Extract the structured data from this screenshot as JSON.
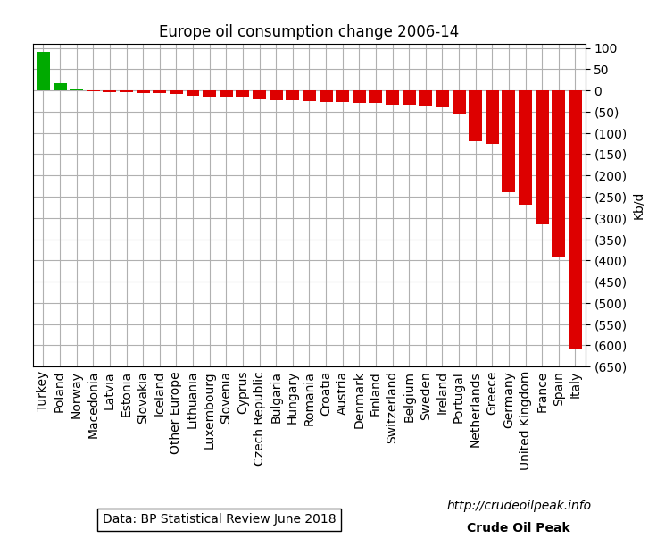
{
  "chart_data": {
    "type": "bar",
    "title": "Europe oil consumption change 2006-14",
    "y_label": "Kb/d",
    "categories": [
      "Turkey",
      "Poland",
      "Norway",
      "Macedonia",
      "Latvia",
      "Estonia",
      "Slovakia",
      "Iceland",
      "Other Europe",
      "Lithuania",
      "Luxembourg",
      "Slovenia",
      "Cyprus",
      "Czech Republic",
      "Bulgaria",
      "Hungary",
      "Romania",
      "Croatia",
      "Austria",
      "Denmark",
      "Finland",
      "Switzerland",
      "Belgium",
      "Sweden",
      "Ireland",
      "Portugal",
      "Netherlands",
      "Greece",
      "Germany",
      "United Kingdom",
      "France",
      "Spain",
      "Italy"
    ],
    "values": [
      90,
      18,
      2,
      -2,
      -3,
      -3,
      -5,
      -5,
      -7,
      -13,
      -14,
      -16,
      -17,
      -20,
      -22,
      -23,
      -25,
      -27,
      -27,
      -28,
      -30,
      -33,
      -35,
      -37,
      -40,
      -55,
      -120,
      -125,
      -240,
      -270,
      -315,
      -390,
      -610
    ],
    "colors": [
      "#00aa00",
      "#00aa00",
      "#00aa00",
      "#dd0000",
      "#dd0000",
      "#dd0000",
      "#dd0000",
      "#dd0000",
      "#dd0000",
      "#dd0000",
      "#dd0000",
      "#dd0000",
      "#dd0000",
      "#dd0000",
      "#dd0000",
      "#dd0000",
      "#dd0000",
      "#dd0000",
      "#dd0000",
      "#dd0000",
      "#dd0000",
      "#dd0000",
      "#dd0000",
      "#dd0000",
      "#dd0000",
      "#dd0000",
      "#dd0000",
      "#dd0000",
      "#dd0000",
      "#dd0000",
      "#dd0000",
      "#dd0000",
      "#dd0000"
    ],
    "ylim": [
      -650,
      110
    ],
    "yticks": [
      {
        "value": -650,
        "label": "(650)"
      },
      {
        "value": -600,
        "label": "(600)"
      },
      {
        "value": -550,
        "label": "(550)"
      },
      {
        "value": -500,
        "label": "(500)"
      },
      {
        "value": -450,
        "label": "(450)"
      },
      {
        "value": -400,
        "label": "(400)"
      },
      {
        "value": -350,
        "label": "(350)"
      },
      {
        "value": -300,
        "label": "(300)"
      },
      {
        "value": -250,
        "label": "(250)"
      },
      {
        "value": -200,
        "label": "(200)"
      },
      {
        "value": -150,
        "label": "(150)"
      },
      {
        "value": -100,
        "label": "(100)"
      },
      {
        "value": -50,
        "label": "(50)"
      },
      0,
      50,
      100
    ],
    "grid": true,
    "annotations": [
      "Data: BP Statistical Review June 2018",
      "http://crudeoilpeak.info",
      "Crude Oil Peak"
    ]
  }
}
